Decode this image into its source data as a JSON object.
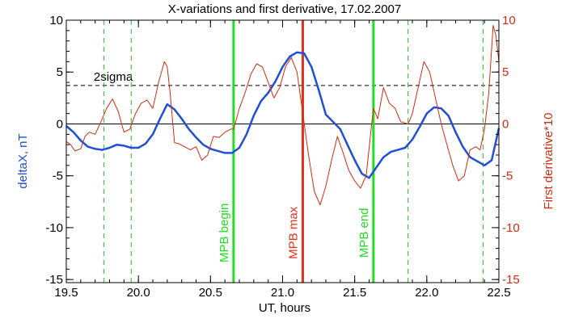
{
  "colors": {
    "background": "#ffffff",
    "axis": "#000000",
    "deltaX": "#1f4fd6",
    "derivative": "#d02c10",
    "mpb_max": "#e0321a",
    "mpb_edges": "#22dd22",
    "dashed_verticals": "#22bb22"
  },
  "chart_data": {
    "type": "line",
    "title": "X-variations and first derivative, 17.02.2007",
    "xlabel": "UT, hours",
    "ylabel_left": "deltaX, nT",
    "ylabel_right": "First derivative*10",
    "xlim": [
      19.5,
      22.5
    ],
    "ylim": [
      -15.3,
      10
    ],
    "x_ticks": [
      19.5,
      20.0,
      20.5,
      21.0,
      21.5,
      22.0,
      22.5
    ],
    "x_tick_labels": [
      "19.5",
      "20.0",
      "20.5",
      "21.0",
      "21.5",
      "22.0",
      "22.5"
    ],
    "y_ticks": [
      -15,
      -10,
      -5,
      0,
      5,
      10
    ],
    "y_tick_labels": [
      "-15",
      "-10",
      "-5",
      "0",
      "5",
      "10"
    ],
    "zero_line": 0,
    "sigma_level": 3.7,
    "sigma_label": "2sigma",
    "markers": [
      {
        "x": 20.66,
        "label": "MPB begin",
        "color_key": "mpb_edges"
      },
      {
        "x": 21.14,
        "label": "MPB max",
        "color_key": "mpb_max"
      },
      {
        "x": 21.63,
        "label": "MPB end",
        "color_key": "mpb_edges"
      }
    ],
    "dashed_lines_x": [
      19.76,
      19.95,
      21.87,
      22.39
    ],
    "series": [
      {
        "name": "deltaX, nT",
        "color_key": "deltaX",
        "x": [
          19.5,
          19.55,
          19.6,
          19.65,
          19.7,
          19.75,
          19.8,
          19.85,
          19.9,
          19.95,
          20.0,
          20.05,
          20.1,
          20.15,
          20.2,
          20.25,
          20.3,
          20.35,
          20.4,
          20.45,
          20.5,
          20.55,
          20.6,
          20.65,
          20.7,
          20.75,
          20.8,
          20.85,
          20.9,
          20.95,
          21.0,
          21.05,
          21.1,
          21.15,
          21.2,
          21.25,
          21.3,
          21.35,
          21.4,
          21.45,
          21.5,
          21.55,
          21.6,
          21.65,
          21.7,
          21.75,
          21.8,
          21.85,
          21.9,
          21.95,
          22.0,
          22.05,
          22.1,
          22.15,
          22.2,
          22.25,
          22.3,
          22.35,
          22.4,
          22.45,
          22.5
        ],
        "y": [
          -0.2,
          -0.8,
          -1.6,
          -2.2,
          -2.4,
          -2.5,
          -2.3,
          -2.0,
          -2.1,
          -2.3,
          -2.3,
          -1.9,
          -1.0,
          0.5,
          1.9,
          1.4,
          0.5,
          -0.5,
          -1.3,
          -2.0,
          -2.4,
          -2.6,
          -2.8,
          -2.8,
          -2.3,
          -1.0,
          0.8,
          2.2,
          3.0,
          4.1,
          5.5,
          6.5,
          6.9,
          6.8,
          5.5,
          3.3,
          0.9,
          0.2,
          -0.5,
          -2.0,
          -3.5,
          -4.8,
          -5.2,
          -4.2,
          -3.2,
          -2.7,
          -2.5,
          -2.3,
          -1.5,
          -0.3,
          1.0,
          1.6,
          1.5,
          0.8,
          -0.8,
          -2.2,
          -3.2,
          -3.6,
          -4.0,
          -3.5,
          -0.4
        ]
      },
      {
        "name": "First derivative*10",
        "color_key": "derivative",
        "x": [
          19.5,
          19.53,
          19.56,
          19.6,
          19.63,
          19.66,
          19.7,
          19.74,
          19.78,
          19.82,
          19.86,
          19.9,
          19.94,
          19.98,
          20.02,
          20.06,
          20.1,
          20.14,
          20.18,
          20.2,
          20.22,
          20.25,
          20.28,
          20.32,
          20.36,
          20.4,
          20.44,
          20.48,
          20.52,
          20.56,
          20.6,
          20.64,
          20.66,
          20.7,
          20.74,
          20.78,
          20.82,
          20.86,
          20.9,
          20.94,
          20.98,
          21.02,
          21.06,
          21.1,
          21.14,
          21.18,
          21.22,
          21.26,
          21.3,
          21.34,
          21.38,
          21.42,
          21.46,
          21.5,
          21.54,
          21.58,
          21.61,
          21.63,
          21.66,
          21.7,
          21.74,
          21.78,
          21.82,
          21.87,
          21.9,
          21.94,
          21.98,
          22.02,
          22.06,
          22.1,
          22.14,
          22.18,
          22.22,
          22.26,
          22.3,
          22.34,
          22.37,
          22.4,
          22.43,
          22.46,
          22.48,
          22.5
        ],
        "y": [
          -1.7,
          -2.0,
          -2.6,
          -2.4,
          -1.2,
          -0.8,
          -1.0,
          0.2,
          1.5,
          2.4,
          1.2,
          -0.8,
          -0.5,
          1.0,
          2.0,
          2.3,
          1.5,
          4.0,
          6.0,
          5.5,
          3.0,
          -1.8,
          -1.9,
          -2.2,
          -2.5,
          -2.2,
          -3.5,
          -3.0,
          -1.2,
          -1.3,
          -0.8,
          -0.5,
          -0.5,
          1.5,
          3.0,
          4.8,
          5.8,
          5.5,
          4.0,
          2.5,
          3.5,
          5.5,
          6.4,
          5.0,
          1.0,
          -3.0,
          -6.5,
          -7.8,
          -6.0,
          -3.5,
          -1.2,
          -2.8,
          -4.5,
          -5.5,
          -6.2,
          -5.0,
          -1.0,
          1.5,
          0.5,
          3.5,
          2.0,
          1.5,
          0.2,
          0.0,
          1.0,
          3.5,
          6.0,
          5.0,
          2.5,
          0.0,
          -2.0,
          -4.0,
          -5.5,
          -5.0,
          -2.5,
          -2.2,
          -2.5,
          -0.5,
          3.0,
          9.5,
          8.5,
          6.0
        ]
      }
    ]
  }
}
